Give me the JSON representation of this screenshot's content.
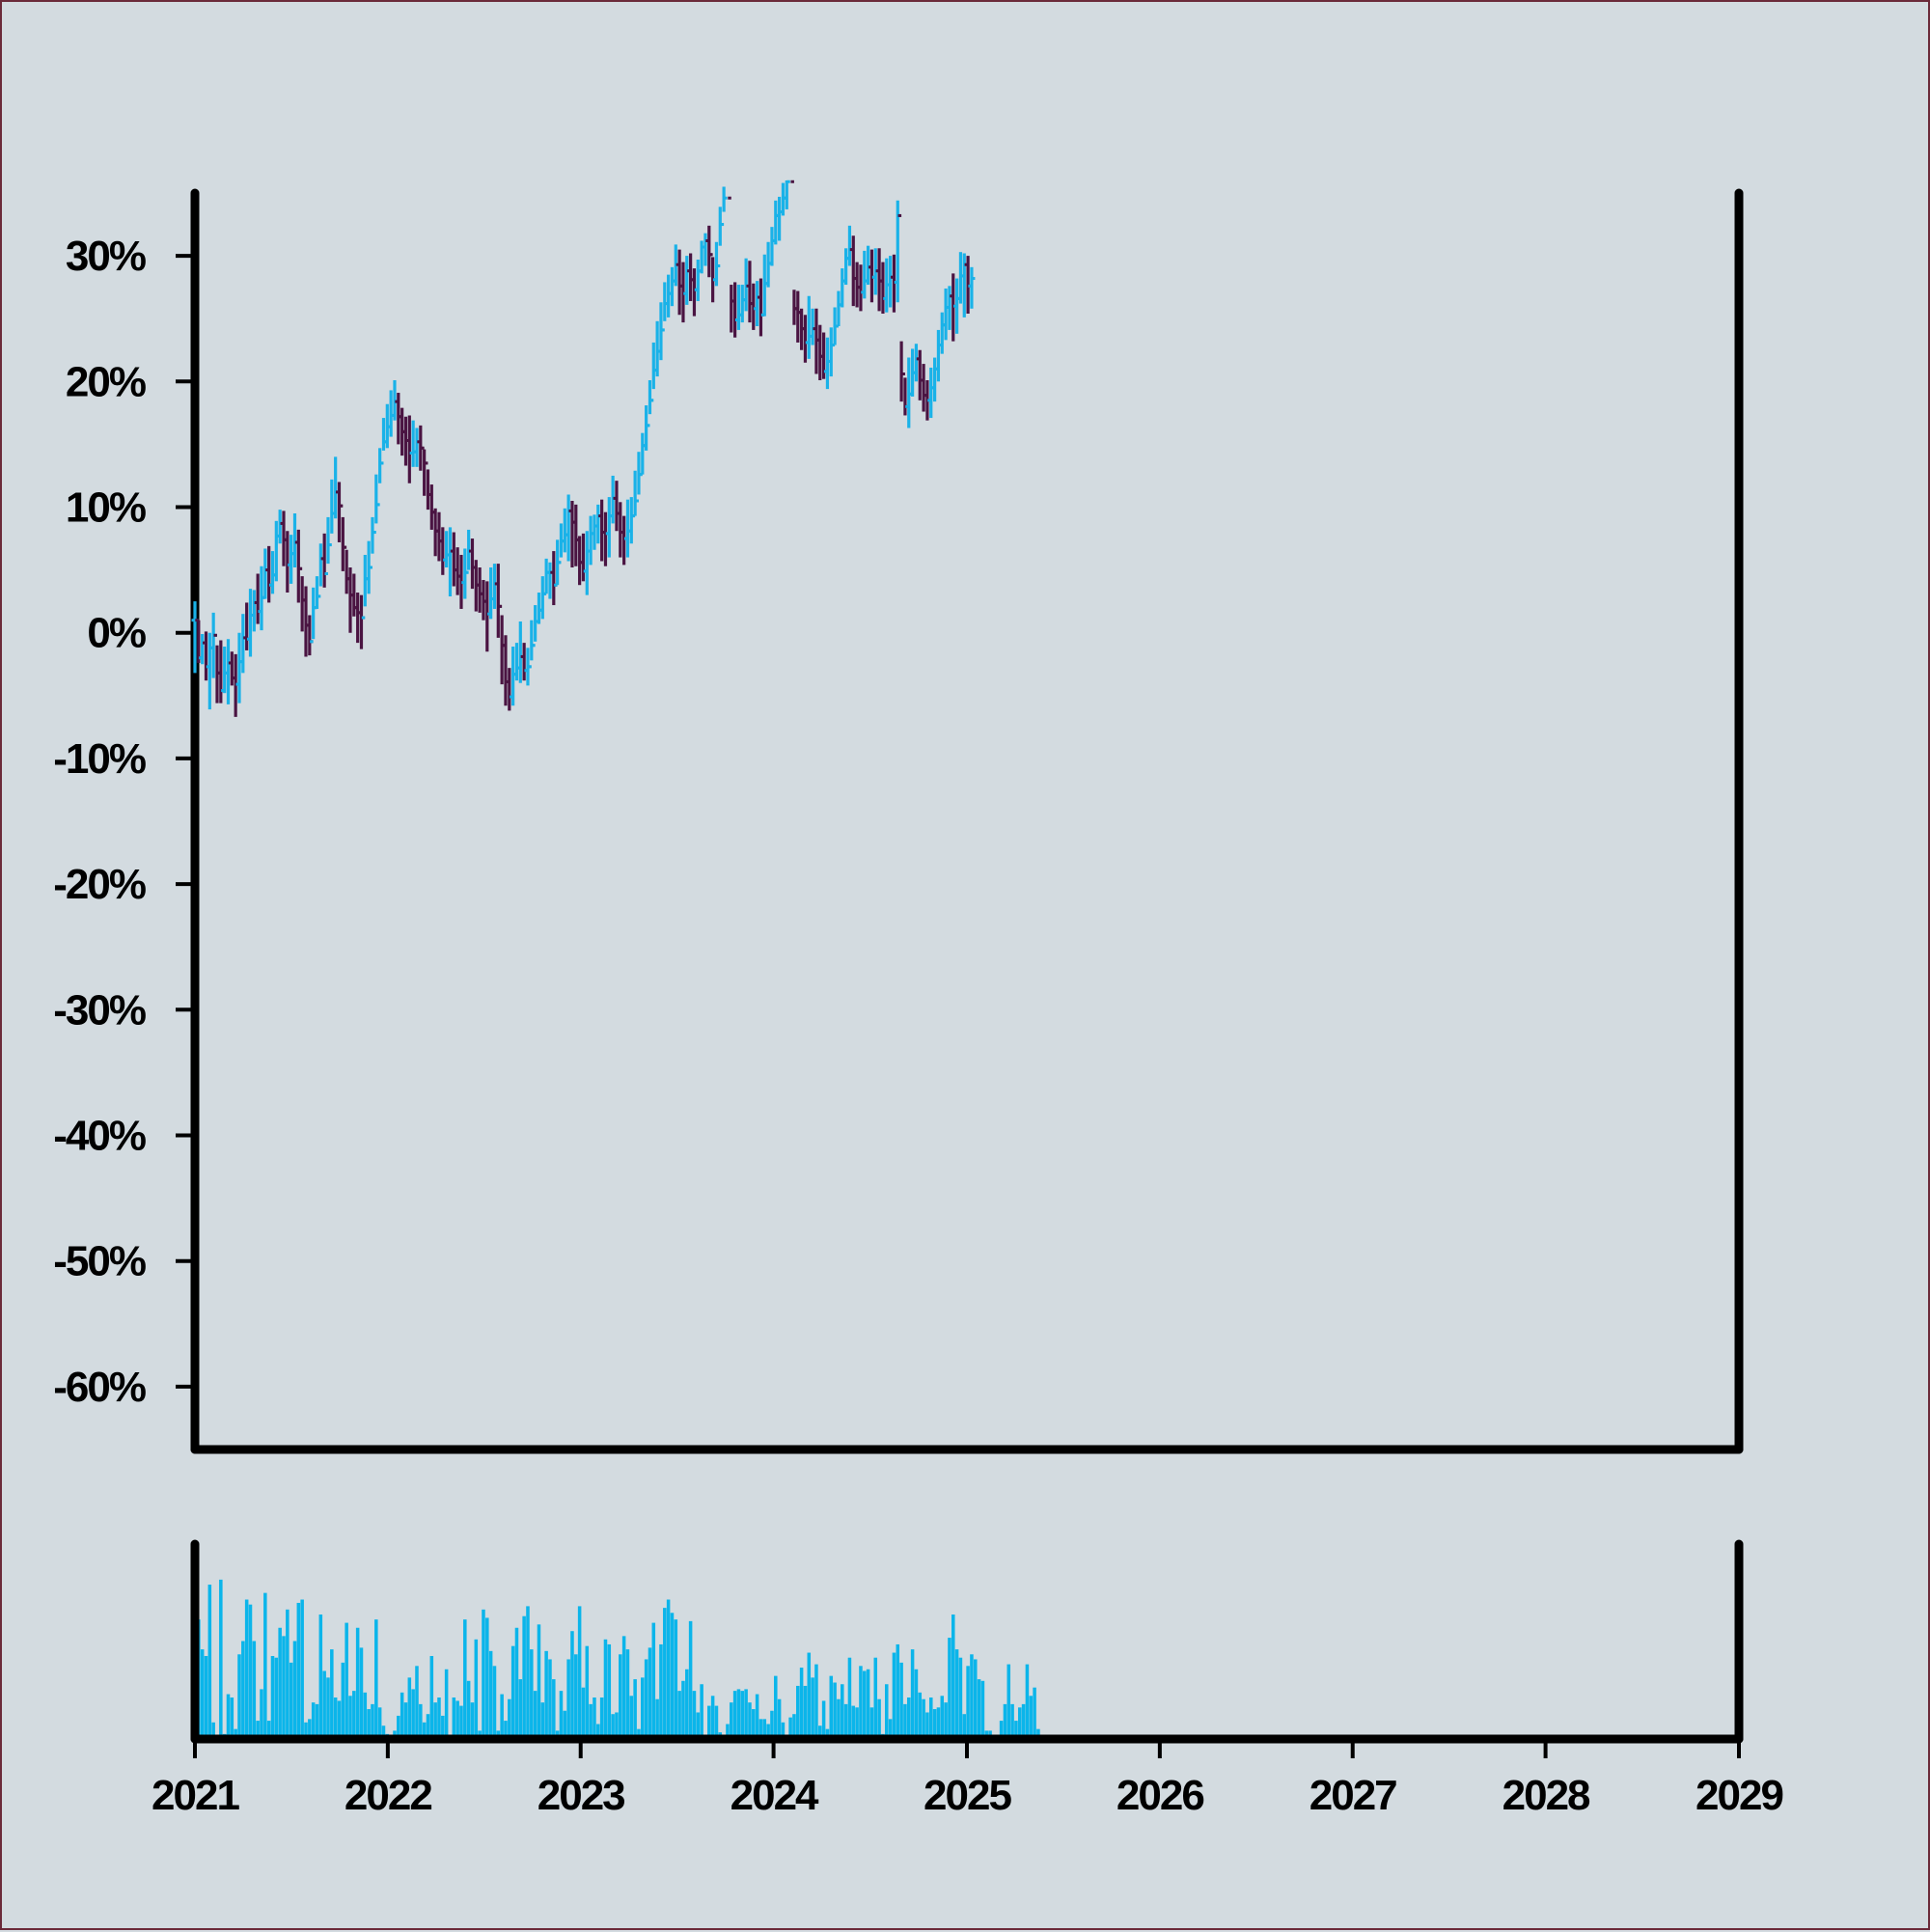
{
  "chart_data": [
    {
      "type": "ohlc",
      "title": "",
      "xlabel": "",
      "ylabel": "",
      "x_ticks": [
        "2021",
        "2022",
        "2023",
        "2024",
        "2025",
        "2026",
        "2027",
        "2028",
        "2029"
      ],
      "y_ticks": [
        "30%",
        "20%",
        "10%",
        "0%",
        "-10%",
        "-20%",
        "-30%",
        "-40%",
        "-50%",
        "-60%"
      ],
      "xlim": [
        "2021-01-01",
        "2029-01-01"
      ],
      "ylim": [
        -65,
        35
      ],
      "colors": {
        "up": "#1ab2e8",
        "down": "#4a1442",
        "background": "#d3dbe0",
        "axis": "#000000"
      },
      "series": [
        {
          "x_start": "2021-01-01",
          "x_step_days": 7,
          "close": [
            1.0,
            -2.0,
            -0.8,
            -2.7,
            -1.2,
            -0.2,
            -3.2,
            -4.6,
            -3.2,
            -2.4,
            -3.6,
            -4.1,
            -2.3,
            -0.4,
            -0.5,
            1.4,
            2.4,
            1.7,
            2.8,
            5.0,
            3.8,
            4.6,
            7.7,
            8.7,
            7.4,
            5.4,
            6.3,
            7.2,
            5.1,
            2.6,
            0.6,
            -0.7,
            2.0,
            2.9,
            5.9,
            4.7,
            7.0,
            9.5,
            11.2,
            10.1,
            6.8,
            4.3,
            3.0,
            2.0,
            1.6,
            1.2,
            4.3,
            5.2,
            8.0,
            10.2,
            13.5,
            15.2,
            16.4,
            17.3,
            18.4,
            17.2,
            16.0,
            15.3,
            14.3,
            14.4,
            15.2,
            14.7,
            13.5,
            11.0,
            9.6,
            8.1,
            7.3,
            5.8,
            6.2,
            6.5,
            5.0,
            4.5,
            4.0,
            4.8,
            6.5,
            5.2,
            3.8,
            3.1,
            2.5,
            1.5,
            2.7,
            3.9,
            2.1,
            -1.0,
            -3.9,
            -5.1,
            -3.3,
            -2.8,
            -1.9,
            -3.0,
            -2.7,
            -1.0,
            0.9,
            1.8,
            3.1,
            4.8,
            4.8,
            3.8,
            5.6,
            7.3,
            7.8,
            9.7,
            8.8,
            7.4,
            5.6,
            4.9,
            6.5,
            7.9,
            8.5,
            9.3,
            8.0,
            7.9,
            9.3,
            10.7,
            9.5,
            8.0,
            7.5,
            8.1,
            9.3,
            10.5,
            12.6,
            14.9,
            16.5,
            18.5,
            20.9,
            22.4,
            24.1,
            26.2,
            27.0,
            28.0,
            29.3,
            27.6,
            27.0,
            28.8,
            28.1,
            27.3,
            28.8,
            30.7,
            31.2,
            30.1,
            28.1,
            29.2,
            32.5,
            34.6,
            null,
            26.4,
            24.9,
            25.3,
            26.5,
            27.6,
            26.2,
            25.8,
            26.7,
            25.3,
            27.8,
            29.4,
            31.2,
            33.2,
            33.5,
            34.6,
            35.9,
            null,
            25.8,
            25.5,
            24.2,
            23.1,
            23.6,
            24.2,
            23.3,
            22.0,
            20.8,
            21.6,
            22.9,
            24.4,
            26.1,
            28.0,
            29.8,
            30.5,
            28.2,
            27.5,
            27.1,
            28.0,
            29.1,
            28.3,
            28.8,
            28.0,
            26.6,
            27.7,
            28.3,
            27.9,
            33.2,
            20.6,
            18.0,
            19.0,
            20.7,
            21.8,
            20.1,
            18.9,
            18.5,
            19.5,
            21.0,
            22.9,
            24.5,
            25.9,
            26.8,
            26.0,
            26.6,
            28.4,
            29.3,
            27.6,
            28.2
          ],
          "high": [
            2.5,
            1.0,
            -0.1,
            0.1,
            0.0,
            1.6,
            -1.0,
            -0.6,
            -1.1,
            -0.5,
            -1.5,
            -1.7,
            0.0,
            1.5,
            2.4,
            3.5,
            3.4,
            4.7,
            5.3,
            6.7,
            6.9,
            6.5,
            8.9,
            9.8,
            9.7,
            8.1,
            7.8,
            9.5,
            8.2,
            4.5,
            3.7,
            1.4,
            3.6,
            4.5,
            7.1,
            7.9,
            9.2,
            12.2,
            14.0,
            12.0,
            9.2,
            6.6,
            5.2,
            4.7,
            3.2,
            3.0,
            6.2,
            7.3,
            9.2,
            12.6,
            14.7,
            17.1,
            18.2,
            19.3,
            20.1,
            19.1,
            17.9,
            17.2,
            17.3,
            16.9,
            16.3,
            16.5,
            14.6,
            13.0,
            11.8,
            9.9,
            9.6,
            8.4,
            8.1,
            8.4,
            8.0,
            6.8,
            6.2,
            6.7,
            8.2,
            7.5,
            5.8,
            5.2,
            4.2,
            4.1,
            5.2,
            5.5,
            5.5,
            1.4,
            -0.2,
            -2.8,
            -1.1,
            -0.8,
            0.9,
            -0.8,
            -1.2,
            1.0,
            2.2,
            3.2,
            4.5,
            5.9,
            5.6,
            6.5,
            7.4,
            8.7,
            9.9,
            11.0,
            10.5,
            10.2,
            7.7,
            7.9,
            8.1,
            9.3,
            9.4,
            10.2,
            10.6,
            9.6,
            10.8,
            12.5,
            12.1,
            10.4,
            9.3,
            10.6,
            10.8,
            12.9,
            14.4,
            15.9,
            18.1,
            20.1,
            23.1,
            24.8,
            26.3,
            27.9,
            28.5,
            29.1,
            30.9,
            30.5,
            29.5,
            30.0,
            30.2,
            29.0,
            29.7,
            31.2,
            31.8,
            32.4,
            29.9,
            31.1,
            33.9,
            35.5,
            null,
            27.7,
            27.9,
            27.7,
            27.7,
            29.8,
            29.6,
            27.8,
            28.0,
            28.2,
            30.1,
            31.1,
            32.3,
            34.4,
            34.7,
            35.8,
            36.0,
            null,
            27.3,
            27.2,
            25.8,
            25.3,
            26.8,
            25.8,
            25.8,
            24.5,
            23.9,
            23.5,
            24.3,
            25.9,
            27.2,
            29.0,
            30.6,
            32.4,
            31.6,
            29.5,
            29.3,
            30.4,
            30.8,
            30.5,
            30.6,
            30.6,
            29.5,
            29.8,
            30.0,
            30.1,
            34.4,
            23.2,
            20.3,
            21.9,
            22.6,
            23.0,
            22.5,
            21.4,
            20.1,
            21.1,
            21.9,
            24.1,
            25.5,
            27.4,
            27.6,
            28.6,
            28.2,
            30.3,
            30.2,
            30.0,
            29.1
          ],
          "low": [
            -3.2,
            -2.4,
            -2.5,
            -3.8,
            -6.1,
            -3.6,
            -5.6,
            -5.6,
            -4.8,
            -5.7,
            -4.2,
            -6.7,
            -5.6,
            -3.2,
            -1.4,
            -1.9,
            0.1,
            0.7,
            0.2,
            2.7,
            2.4,
            3.1,
            4.1,
            7.1,
            5.3,
            3.2,
            3.9,
            5.2,
            2.4,
            0.1,
            -1.9,
            -1.8,
            -0.5,
            1.9,
            3.7,
            3.6,
            5.5,
            7.9,
            9.1,
            7.2,
            4.9,
            3.1,
            0.0,
            1.3,
            -0.8,
            -1.3,
            2.1,
            3.1,
            6.3,
            8.7,
            11.9,
            14.5,
            14.7,
            15.6,
            16.9,
            15.0,
            14.1,
            13.3,
            11.9,
            13.2,
            13.2,
            12.9,
            10.9,
            9.8,
            8.2,
            6.1,
            5.7,
            4.6,
            5.2,
            2.9,
            3.7,
            3.0,
            1.9,
            2.7,
            5.0,
            3.5,
            1.7,
            1.6,
            1.0,
            -1.5,
            1.1,
            1.9,
            -0.4,
            -4.1,
            -5.8,
            -6.2,
            -5.8,
            -3.8,
            -4.0,
            -3.8,
            -4.2,
            -2.2,
            -0.7,
            0.7,
            1.1,
            3.1,
            2.7,
            2.2,
            3.8,
            6.0,
            6.4,
            5.7,
            5.2,
            5.3,
            3.8,
            4.1,
            3.0,
            5.4,
            6.6,
            7.1,
            5.7,
            5.3,
            6.0,
            8.7,
            8.1,
            6.0,
            5.4,
            6.0,
            7.1,
            9.3,
            11.0,
            12.6,
            14.5,
            17.4,
            19.4,
            20.4,
            21.7,
            24.8,
            25.1,
            26.0,
            27.6,
            25.3,
            24.7,
            26.1,
            26.4,
            25.2,
            26.4,
            28.6,
            29.2,
            28.3,
            26.3,
            27.6,
            30.8,
            33.5,
            null,
            23.9,
            23.5,
            24.1,
            24.7,
            25.6,
            24.7,
            24.1,
            24.4,
            23.6,
            25.2,
            27.5,
            29.2,
            30.9,
            31.2,
            33.2,
            33.7,
            null,
            24.5,
            23.1,
            22.5,
            21.5,
            21.8,
            22.9,
            20.6,
            20.1,
            20.2,
            19.4,
            20.4,
            22.9,
            24.4,
            25.9,
            27.7,
            29.2,
            26.0,
            25.9,
            25.6,
            26.6,
            27.7,
            26.3,
            26.9,
            25.6,
            25.4,
            25.5,
            25.9,
            25.5,
            26.3,
            18.4,
            17.3,
            16.3,
            18.8,
            20.0,
            18.5,
            17.6,
            16.9,
            17.1,
            18.4,
            20.0,
            22.2,
            23.3,
            24.1,
            23.2,
            23.8,
            26.2,
            25.1,
            25.4,
            25.8
          ]
        }
      ]
    },
    {
      "type": "bar",
      "title": "",
      "ylabel": "",
      "x_start": "2021-01-01",
      "x_step_days": 7,
      "color": "#0bb5ea",
      "values": [
        0.44,
        0.72,
        0.54,
        0.5,
        0.93,
        0.1,
        0.02,
        0.96,
        0.03,
        0.27,
        0.25,
        0.06,
        0.51,
        0.59,
        0.84,
        0.81,
        0.59,
        0.11,
        0.3,
        0.88,
        0.11,
        0.5,
        0.49,
        0.67,
        0.62,
        0.78,
        0.46,
        0.59,
        0.82,
        0.84,
        0.1,
        0.12,
        0.22,
        0.21,
        0.75,
        0.41,
        0.37,
        0.54,
        0.25,
        0.23,
        0.46,
        0.7,
        0.26,
        0.29,
        0.67,
        0.55,
        0.28,
        0.18,
        0.21,
        0.72,
        0.19,
        0.08,
        0.03,
        0.02,
        0.05,
        0.14,
        0.28,
        0.22,
        0.37,
        0.3,
        0.44,
        0.21,
        0.1,
        0.15,
        0.5,
        0.22,
        0.25,
        0.14,
        0.42,
        0.01,
        0.25,
        0.23,
        0.2,
        0.72,
        0.35,
        0.22,
        0.6,
        0.05,
        0.78,
        0.73,
        0.53,
        0.44,
        0.05,
        0.27,
        0.11,
        0.24,
        0.56,
        0.67,
        0.36,
        0.74,
        0.8,
        0.54,
        0.29,
        0.69,
        0.22,
        0.53,
        0.48,
        0.36,
        0.05,
        0.29,
        0.17,
        0.48,
        0.65,
        0.51,
        0.8,
        0.31,
        0.56,
        0.21,
        0.25,
        0.09,
        0.25,
        0.6,
        0.57,
        0.15,
        0.16,
        0.51,
        0.62,
        0.54,
        0.26,
        0.36,
        0.06,
        0.37,
        0.48,
        0.55,
        0.7,
        0.24,
        0.57,
        0.79,
        0.84,
        0.76,
        0.72,
        0.29,
        0.35,
        0.42,
        0.71,
        0.29,
        0.16,
        0.33,
        0.02,
        0.2,
        0.26,
        0.2,
        0.04,
        0.01,
        0.09,
        0.22,
        0.29,
        0.3,
        0.29,
        0.3,
        0.22,
        0.18,
        0.27,
        0.12,
        0.12,
        0.09,
        0.17,
        0.38,
        0.24,
        0.1,
        0.0,
        0.13,
        0.15,
        0.32,
        0.43,
        0.32,
        0.52,
        0.37,
        0.45,
        0.08,
        0.23,
        0.06,
        0.38,
        0.34,
        0.24,
        0.33,
        0.21,
        0.49,
        0.2,
        0.19,
        0.44,
        0.41,
        0.42,
        0.19,
        0.49,
        0.24,
        0.03,
        0.33,
        0.12,
        0.52,
        0.57,
        0.46,
        0.21,
        0.25,
        0.54,
        0.42,
        0.28,
        0.24,
        0.16,
        0.25,
        0.18,
        0.19,
        0.26,
        0.22,
        0.61,
        0.75,
        0.54,
        0.49,
        0.15,
        0.44,
        0.51,
        0.48,
        0.36,
        0.35,
        0.05,
        0.05,
        0.02,
        0.0,
        0.11,
        0.21,
        0.45,
        0.21,
        0.11,
        0.19,
        0.21,
        0.45,
        0.26,
        0.31,
        0.06
      ],
      "ylim": [
        0,
        1
      ]
    }
  ]
}
